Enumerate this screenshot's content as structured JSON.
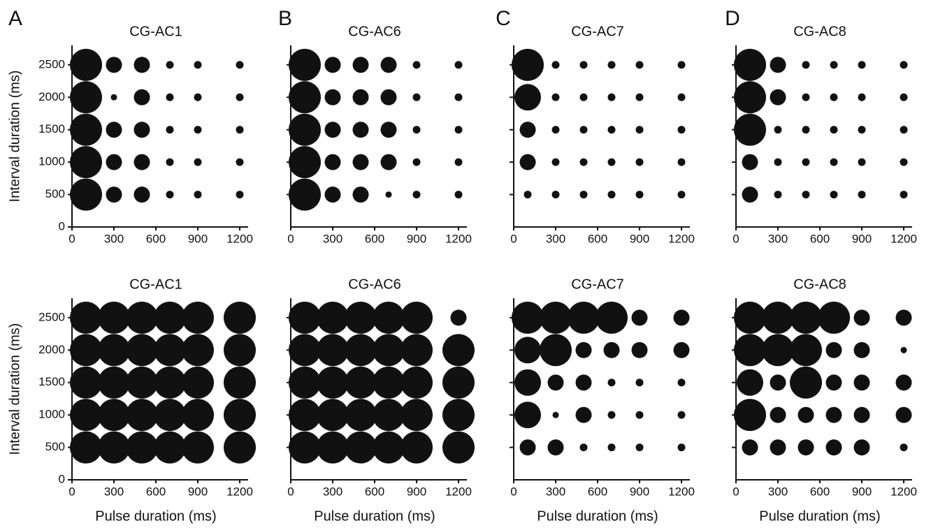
{
  "chart_data": [
    {
      "type": "bubble",
      "panel_label": "A",
      "title": "CG-AC1",
      "ylabel": "Interval duration (ms)",
      "show_ytick_labels": true,
      "x": [
        100,
        300,
        500,
        700,
        900,
        1200,
        100,
        300,
        500,
        700,
        900,
        1200,
        100,
        300,
        500,
        700,
        900,
        1200,
        100,
        300,
        500,
        700,
        900,
        1200,
        100,
        300,
        500,
        700,
        900,
        1200
      ],
      "y": [
        2500,
        2500,
        2500,
        2500,
        2500,
        2500,
        2000,
        2000,
        2000,
        2000,
        2000,
        2000,
        1500,
        1500,
        1500,
        1500,
        1500,
        1500,
        1000,
        1000,
        1000,
        1000,
        1000,
        1000,
        500,
        500,
        500,
        500,
        500,
        500
      ],
      "sizes": [
        5,
        3,
        3,
        2,
        2,
        2,
        5,
        1,
        3,
        2,
        2,
        2,
        5,
        3,
        3,
        2,
        2,
        2,
        5,
        3,
        3,
        2,
        2,
        2,
        5,
        3,
        3,
        2,
        2,
        2
      ],
      "xlim": [
        0,
        1260
      ],
      "ylim": [
        0,
        2800
      ],
      "xticks": [
        0,
        300,
        600,
        900,
        1200
      ],
      "yticks": [
        0,
        500,
        1000,
        1500,
        2000,
        2500
      ],
      "color": "#111111"
    },
    {
      "type": "bubble",
      "panel_label": "B",
      "title": "CG-AC6",
      "show_ytick_labels": false,
      "x": [
        100,
        300,
        500,
        700,
        900,
        1200,
        100,
        300,
        500,
        700,
        900,
        1200,
        100,
        300,
        500,
        700,
        900,
        1200,
        100,
        300,
        500,
        700,
        900,
        1200,
        100,
        300,
        500,
        700,
        900,
        1200
      ],
      "y": [
        2500,
        2500,
        2500,
        2500,
        2500,
        2500,
        2000,
        2000,
        2000,
        2000,
        2000,
        2000,
        1500,
        1500,
        1500,
        1500,
        1500,
        1500,
        1000,
        1000,
        1000,
        1000,
        1000,
        1000,
        500,
        500,
        500,
        500,
        500,
        500
      ],
      "sizes": [
        5,
        3,
        3,
        3,
        2,
        2,
        5,
        3,
        3,
        3,
        2,
        2,
        5,
        3,
        3,
        3,
        2,
        2,
        5,
        3,
        3,
        3,
        2,
        2,
        5,
        3,
        3,
        1,
        2,
        2
      ],
      "xlim": [
        0,
        1260
      ],
      "ylim": [
        0,
        2800
      ],
      "xticks": [
        0,
        300,
        600,
        900,
        1200
      ],
      "yticks": [
        500,
        1000,
        1500,
        2000,
        2500
      ],
      "color": "#111111"
    },
    {
      "type": "bubble",
      "panel_label": "C",
      "title": "CG-AC7",
      "show_ytick_labels": false,
      "x": [
        100,
        300,
        500,
        700,
        900,
        1200,
        100,
        300,
        500,
        700,
        900,
        1200,
        100,
        300,
        500,
        700,
        900,
        1200,
        100,
        300,
        500,
        700,
        900,
        1200,
        100,
        300,
        500,
        700,
        900,
        1200
      ],
      "y": [
        2500,
        2500,
        2500,
        2500,
        2500,
        2500,
        2000,
        2000,
        2000,
        2000,
        2000,
        2000,
        1500,
        1500,
        1500,
        1500,
        1500,
        1500,
        1000,
        1000,
        1000,
        1000,
        1000,
        1000,
        500,
        500,
        500,
        500,
        500,
        500
      ],
      "sizes": [
        5,
        2,
        2,
        2,
        2,
        2,
        4,
        2,
        2,
        2,
        2,
        2,
        3,
        2,
        2,
        2,
        2,
        2,
        3,
        2,
        2,
        2,
        2,
        2,
        2,
        2,
        2,
        2,
        2,
        2
      ],
      "xlim": [
        0,
        1260
      ],
      "ylim": [
        0,
        2800
      ],
      "xticks": [
        0,
        300,
        600,
        900,
        1200
      ],
      "yticks": [
        500,
        1000,
        1500,
        2000,
        2500
      ],
      "color": "#111111"
    },
    {
      "type": "bubble",
      "panel_label": "D",
      "title": "CG-AC8",
      "show_ytick_labels": false,
      "x": [
        100,
        300,
        500,
        700,
        900,
        1200,
        100,
        300,
        500,
        700,
        900,
        1200,
        100,
        300,
        500,
        700,
        900,
        1200,
        100,
        300,
        500,
        700,
        900,
        1200,
        100,
        300,
        500,
        700,
        900,
        1200
      ],
      "y": [
        2500,
        2500,
        2500,
        2500,
        2500,
        2500,
        2000,
        2000,
        2000,
        2000,
        2000,
        2000,
        1500,
        1500,
        1500,
        1500,
        1500,
        1500,
        1000,
        1000,
        1000,
        1000,
        1000,
        1000,
        500,
        500,
        500,
        500,
        500,
        500
      ],
      "sizes": [
        5,
        3,
        2,
        2,
        2,
        2,
        5,
        3,
        2,
        2,
        2,
        2,
        5,
        2,
        2,
        2,
        2,
        2,
        3,
        2,
        2,
        2,
        2,
        2,
        3,
        2,
        2,
        2,
        2,
        2
      ],
      "xlim": [
        0,
        1260
      ],
      "ylim": [
        0,
        2800
      ],
      "xticks": [
        0,
        300,
        600,
        900,
        1200
      ],
      "yticks": [
        500,
        1000,
        1500,
        2000,
        2500
      ],
      "color": "#111111"
    },
    {
      "type": "bubble",
      "title": "CG-AC1",
      "ylabel": "Interval duration (ms)",
      "xlabel": "Pulse duration (ms)",
      "show_ytick_labels": true,
      "x": [
        100,
        300,
        500,
        700,
        900,
        1200,
        100,
        300,
        500,
        700,
        900,
        1200,
        100,
        300,
        500,
        700,
        900,
        1200,
        100,
        300,
        500,
        700,
        900,
        1200,
        100,
        300,
        500,
        700,
        900,
        1200
      ],
      "y": [
        2500,
        2500,
        2500,
        2500,
        2500,
        2500,
        2000,
        2000,
        2000,
        2000,
        2000,
        2000,
        1500,
        1500,
        1500,
        1500,
        1500,
        1500,
        1000,
        1000,
        1000,
        1000,
        1000,
        1000,
        500,
        500,
        500,
        500,
        500,
        500
      ],
      "sizes": [
        5,
        5,
        5,
        5,
        5,
        5,
        5,
        5,
        5,
        5,
        5,
        5,
        5,
        5,
        5,
        5,
        5,
        5,
        5,
        5,
        5,
        5,
        5,
        5,
        5,
        5,
        5,
        5,
        5,
        5
      ],
      "xlim": [
        0,
        1260
      ],
      "ylim": [
        0,
        2800
      ],
      "xticks": [
        0,
        300,
        600,
        900,
        1200
      ],
      "yticks": [
        0,
        500,
        1000,
        1500,
        2000,
        2500
      ],
      "color": "#111111"
    },
    {
      "type": "bubble",
      "title": "CG-AC6",
      "xlabel": "Pulse duration (ms)",
      "show_ytick_labels": false,
      "x": [
        100,
        300,
        500,
        700,
        900,
        1200,
        100,
        300,
        500,
        700,
        900,
        1200,
        100,
        300,
        500,
        700,
        900,
        1200,
        100,
        300,
        500,
        700,
        900,
        1200,
        100,
        300,
        500,
        700,
        900,
        1200
      ],
      "y": [
        2500,
        2500,
        2500,
        2500,
        2500,
        2500,
        2000,
        2000,
        2000,
        2000,
        2000,
        2000,
        1500,
        1500,
        1500,
        1500,
        1500,
        1500,
        1000,
        1000,
        1000,
        1000,
        1000,
        1000,
        500,
        500,
        500,
        500,
        500,
        500
      ],
      "sizes": [
        5,
        5,
        5,
        5,
        5,
        3,
        5,
        5,
        5,
        5,
        5,
        5,
        5,
        5,
        5,
        5,
        5,
        5,
        5,
        5,
        5,
        5,
        5,
        5,
        5,
        5,
        5,
        5,
        5,
        5
      ],
      "xlim": [
        0,
        1260
      ],
      "ylim": [
        0,
        2800
      ],
      "xticks": [
        0,
        300,
        600,
        900,
        1200
      ],
      "yticks": [
        500,
        1000,
        1500,
        2000,
        2500
      ],
      "color": "#111111"
    },
    {
      "type": "bubble",
      "title": "CG-AC7",
      "xlabel": "Pulse duration (ms)",
      "show_ytick_labels": false,
      "x": [
        100,
        300,
        500,
        700,
        900,
        1200,
        100,
        300,
        500,
        700,
        900,
        1200,
        100,
        300,
        500,
        700,
        900,
        1200,
        100,
        300,
        500,
        700,
        900,
        1200,
        100,
        300,
        500,
        700,
        900,
        1200
      ],
      "y": [
        2500,
        2500,
        2500,
        2500,
        2500,
        2500,
        2000,
        2000,
        2000,
        2000,
        2000,
        2000,
        1500,
        1500,
        1500,
        1500,
        1500,
        1500,
        1000,
        1000,
        1000,
        1000,
        1000,
        1000,
        500,
        500,
        500,
        500,
        500,
        500
      ],
      "sizes": [
        5,
        5,
        5,
        5,
        3,
        3,
        4,
        5,
        3,
        3,
        3,
        3,
        4,
        3,
        3,
        2,
        2,
        2,
        4,
        1,
        3,
        2,
        2,
        2,
        3,
        3,
        2,
        2,
        2,
        2
      ],
      "xlim": [
        0,
        1260
      ],
      "ylim": [
        0,
        2800
      ],
      "xticks": [
        0,
        300,
        600,
        900,
        1200
      ],
      "yticks": [
        500,
        1000,
        1500,
        2000,
        2500
      ],
      "color": "#111111"
    },
    {
      "type": "bubble",
      "title": "CG-AC8",
      "xlabel": "Pulse duration (ms)",
      "show_ytick_labels": false,
      "x": [
        100,
        300,
        500,
        700,
        900,
        1200,
        100,
        300,
        500,
        700,
        900,
        1200,
        100,
        300,
        500,
        700,
        900,
        1200,
        100,
        300,
        500,
        700,
        900,
        1200,
        100,
        300,
        500,
        700,
        900,
        1200
      ],
      "y": [
        2500,
        2500,
        2500,
        2500,
        2500,
        2500,
        2000,
        2000,
        2000,
        2000,
        2000,
        2000,
        1500,
        1500,
        1500,
        1500,
        1500,
        1500,
        1000,
        1000,
        1000,
        1000,
        1000,
        1000,
        500,
        500,
        500,
        500,
        500,
        500
      ],
      "sizes": [
        5,
        5,
        5,
        5,
        3,
        3,
        5,
        5,
        5,
        3,
        3,
        1,
        4,
        3,
        5,
        3,
        3,
        3,
        5,
        3,
        3,
        3,
        3,
        3,
        3,
        3,
        3,
        3,
        3,
        2
      ],
      "xlim": [
        0,
        1260
      ],
      "ylim": [
        0,
        2800
      ],
      "xticks": [
        0,
        300,
        600,
        900,
        1200
      ],
      "yticks": [
        500,
        1000,
        1500,
        2000,
        2500
      ],
      "color": "#111111"
    }
  ]
}
